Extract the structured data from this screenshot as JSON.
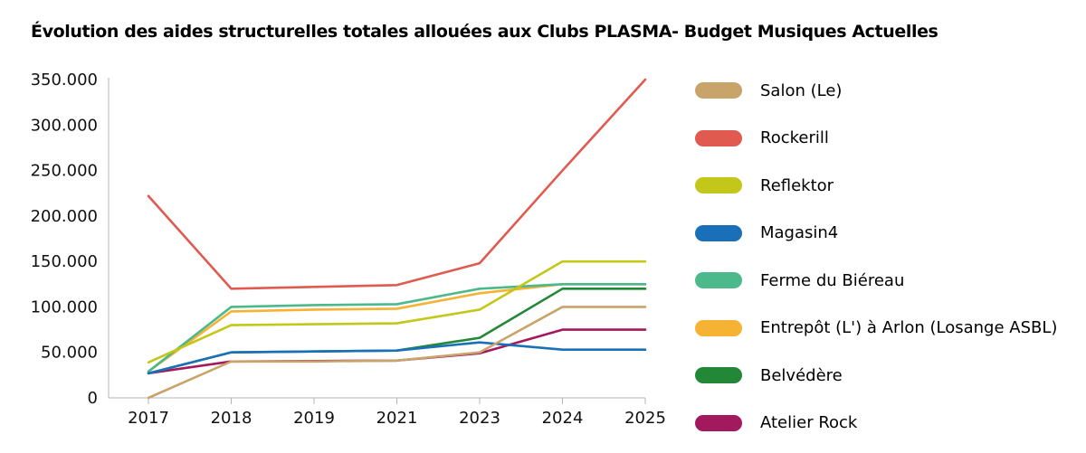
{
  "chart_data": {
    "type": "line",
    "title": "Évolution des aides structurelles totales allouées aux Clubs PLASMA- Budget Musiques Actuelles",
    "xlabel": "",
    "ylabel": "",
    "categories": [
      "2017",
      "2018",
      "2019",
      "2021",
      "2023",
      "2024",
      "2025"
    ],
    "ylim": [
      0,
      350000
    ],
    "yticks": [
      0,
      50000,
      100000,
      150000,
      200000,
      250000,
      300000,
      350000
    ],
    "ytick_labels": [
      "0",
      "50.000",
      "100.000",
      "150.000",
      "200.000",
      "250.000",
      "300.000",
      "350.000"
    ],
    "grid": false,
    "legend_position": "right",
    "series": [
      {
        "name": "Salon (Le)",
        "color": "#c9a46a",
        "values": [
          0,
          40000,
          40000,
          41000,
          50000,
          100000,
          100000
        ]
      },
      {
        "name": "Rockerill",
        "color": "#e05a4f",
        "values": [
          222000,
          120000,
          122000,
          124000,
          148000,
          250000,
          350000
        ]
      },
      {
        "name": "Reflektor",
        "color": "#c3c719",
        "values": [
          39000,
          80000,
          81000,
          82000,
          97000,
          150000,
          150000
        ]
      },
      {
        "name": "Magasin4",
        "color": "#1a70b8",
        "values": [
          27000,
          50000,
          51000,
          52000,
          61000,
          53000,
          53000
        ]
      },
      {
        "name": "Ferme du Biéreau",
        "color": "#4cb98c",
        "values": [
          29000,
          100000,
          102000,
          103000,
          120000,
          125000,
          125000
        ]
      },
      {
        "name": "Entrepôt (L') à Arlon (Losange ASBL)",
        "color": "#f6b233",
        "values": [
          29000,
          95000,
          97000,
          98000,
          115000,
          125000,
          125000
        ]
      },
      {
        "name": "Belvédère",
        "color": "#228838",
        "values": [
          27000,
          50000,
          51000,
          52000,
          66000,
          120000,
          120000
        ]
      },
      {
        "name": "Atelier Rock",
        "color": "#a3195e",
        "values": [
          27000,
          40000,
          40500,
          41000,
          49000,
          75000,
          75000
        ]
      }
    ]
  }
}
